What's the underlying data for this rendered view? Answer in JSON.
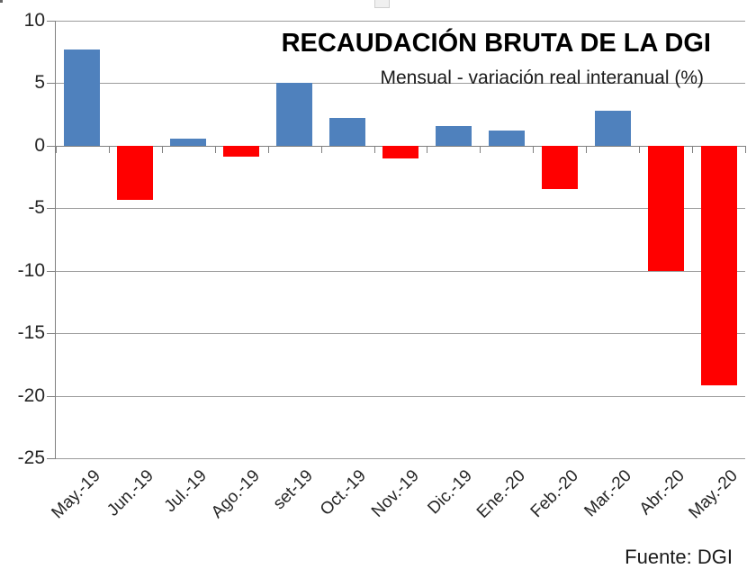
{
  "chart_data": {
    "type": "bar",
    "title": "RECAUDACIÓN BRUTA DE LA DGI",
    "subtitle": "Mensual - variación real interanual (%)",
    "source": "Fuente: DGI",
    "categories": [
      "May.-19",
      "Jun.-19",
      "Jul.-19",
      "Ago.-19",
      "set-19",
      "Oct.-19",
      "Nov.-19",
      "Dic.-19",
      "Ene.-20",
      "Feb.-20",
      "Mar.-20",
      "Abr.-20",
      "May.-20"
    ],
    "values": [
      7.7,
      -4.3,
      0.6,
      -0.9,
      5.0,
      2.2,
      -1.0,
      1.6,
      1.2,
      -3.5,
      2.8,
      -10.0,
      -19.2
    ],
    "ylim": [
      -25,
      10
    ],
    "yticks": [
      10,
      5,
      0,
      -5,
      -10,
      -15,
      -20,
      -25
    ],
    "grid": true,
    "legend": "none",
    "positive_color": "#4F81BD",
    "negative_color": "#FF0000",
    "axis_color": "#808080",
    "gridline_color": "#9C9C9C"
  }
}
